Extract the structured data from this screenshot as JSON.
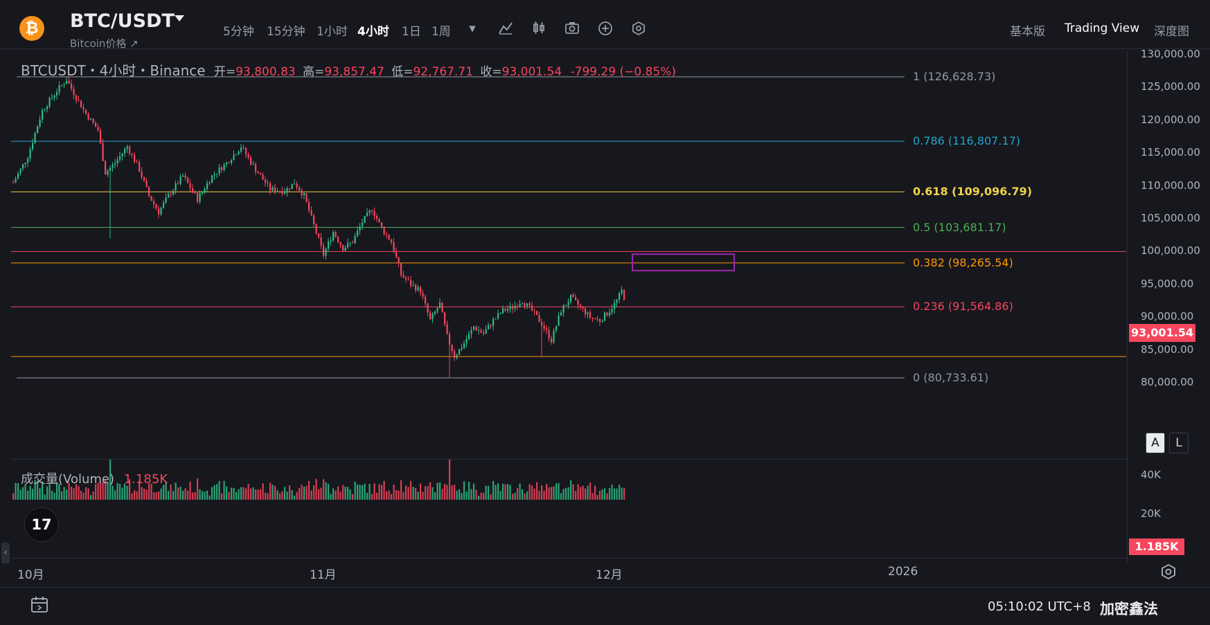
{
  "header": {
    "coin_icon": "bitcoin-icon",
    "coin_glyph": "₿",
    "symbol": "BTC/USDT",
    "subtitle": "Bitcoin价格 ↗",
    "timeframes": [
      "5分钟",
      "15分钟",
      "1小时",
      "4小时",
      "1日",
      "1周"
    ],
    "active_timeframe": "4小时",
    "tools": [
      "chevron-down-icon",
      "indicator-icon",
      "candle-type-icon",
      "camera-icon",
      "plus-circle-icon",
      "settings-hex-icon"
    ],
    "views": [
      "基本版",
      "Trading View",
      "深度图"
    ],
    "active_view": "Trading View"
  },
  "legend": {
    "pair": "BTCUSDT・4小时・Binance",
    "open_label": "开=",
    "open": "93,800.83",
    "high_label": "高=",
    "high": "93,857.47",
    "low_label": "低=",
    "low": "92,767.71",
    "close_label": "收=",
    "close": "93,001.54",
    "change": "-799.29 (−0.85%)"
  },
  "price_axis": [
    "130,000.00",
    "125,000.00",
    "120,000.00",
    "115,000.00",
    "110,000.00",
    "105,000.00",
    "100,000.00",
    "95,000.00",
    "90,000.00",
    "85,000.00",
    "80,000.00"
  ],
  "last_price": "93,001.54",
  "fib_levels": [
    {
      "label": "1 (126,628.73)",
      "price": 126628.73,
      "color": "#9598a1"
    },
    {
      "label": "0.786 (116,807.17)",
      "price": 116807.17,
      "color": "#22a6c8"
    },
    {
      "label": "0.618 (109,096.79)",
      "price": 109096.79,
      "color": "#f0d34a"
    },
    {
      "label": "0.5 (103,681.17)",
      "price": 103681.17,
      "color": "#4caf50"
    },
    {
      "label": "0.382 (98,265.54)",
      "price": 98265.54,
      "color": "#ff9800"
    },
    {
      "label": "0.236 (91,564.86)",
      "price": 91564.86,
      "color": "#f6465d"
    },
    {
      "label": "0 (80,733.61)",
      "price": 80733.61,
      "color": "#9598a1"
    }
  ],
  "hlines": [
    {
      "price": 100000,
      "color": "#f6465d"
    },
    {
      "price": 84000,
      "color": "#ff9800"
    }
  ],
  "zone": {
    "top": 99600,
    "bottom": 97100,
    "color": "#9c27b0"
  },
  "volume": {
    "label": "成交量(Volume)",
    "value": "1.185K",
    "axis": [
      "40K",
      "20K"
    ],
    "last": "1.185K"
  },
  "x_axis": [
    "10月",
    "11月",
    "12月",
    "2026"
  ],
  "buttons": {
    "auto": "A",
    "log": "L"
  },
  "footer": {
    "calendar_icon": "calendar-range-icon",
    "time": "05:10:02 UTC+8",
    "watermark": "加密鑫法"
  },
  "logo": "TradingView",
  "logo_glyph": "17",
  "colors": {
    "up": "#2ebd85",
    "down": "#f6465d",
    "bg": "#17171e"
  },
  "chart_data": {
    "type": "candlestick",
    "interval": "4小时",
    "x": [
      "10月",
      "11月",
      "12月",
      "2026"
    ],
    "ylim": [
      80000,
      130000
    ],
    "path_points": [
      [
        0,
        110500
      ],
      [
        6,
        114500
      ],
      [
        12,
        121500
      ],
      [
        18,
        124500
      ],
      [
        22,
        126200
      ],
      [
        26,
        123500
      ],
      [
        30,
        121000
      ],
      [
        35,
        118500
      ],
      [
        38,
        112000
      ],
      [
        42,
        113500
      ],
      [
        47,
        116000
      ],
      [
        52,
        112500
      ],
      [
        56,
        108500
      ],
      [
        60,
        106000
      ],
      [
        64,
        108500
      ],
      [
        70,
        111500
      ],
      [
        76,
        108000
      ],
      [
        82,
        111500
      ],
      [
        88,
        113500
      ],
      [
        94,
        116000
      ],
      [
        100,
        112500
      ],
      [
        106,
        109500
      ],
      [
        112,
        109200
      ],
      [
        116,
        110500
      ],
      [
        120,
        108500
      ],
      [
        124,
        104000
      ],
      [
        128,
        99500
      ],
      [
        132,
        103000
      ],
      [
        136,
        100500
      ],
      [
        140,
        101500
      ],
      [
        144,
        104500
      ],
      [
        148,
        106500
      ],
      [
        152,
        103500
      ],
      [
        156,
        101500
      ],
      [
        160,
        96500
      ],
      [
        164,
        95000
      ],
      [
        168,
        94000
      ],
      [
        172,
        89500
      ],
      [
        176,
        92000
      ],
      [
        179,
        87000
      ],
      [
        182,
        84000
      ],
      [
        186,
        86000
      ],
      [
        190,
        88500
      ],
      [
        194,
        87500
      ],
      [
        198,
        89500
      ],
      [
        202,
        91000
      ],
      [
        206,
        91500
      ],
      [
        210,
        92500
      ],
      [
        214,
        91000
      ],
      [
        218,
        89000
      ],
      [
        222,
        86500
      ],
      [
        226,
        91000
      ],
      [
        230,
        93000
      ],
      [
        234,
        91500
      ],
      [
        238,
        90000
      ],
      [
        242,
        89500
      ],
      [
        246,
        91000
      ],
      [
        249,
        92500
      ],
      [
        251,
        94000
      ],
      [
        252,
        93000
      ]
    ],
    "spikes": [
      {
        "i": 40,
        "low": 102000
      },
      {
        "i": 180,
        "low": 80733
      },
      {
        "i": 218,
        "low": 84000
      },
      {
        "i": 23,
        "high": 126600
      }
    ],
    "volume_ylim": [
      0,
      40000
    ],
    "volume_spikes": [
      {
        "i": 40,
        "v": 36000
      },
      {
        "i": 180,
        "v": 24000
      }
    ]
  }
}
